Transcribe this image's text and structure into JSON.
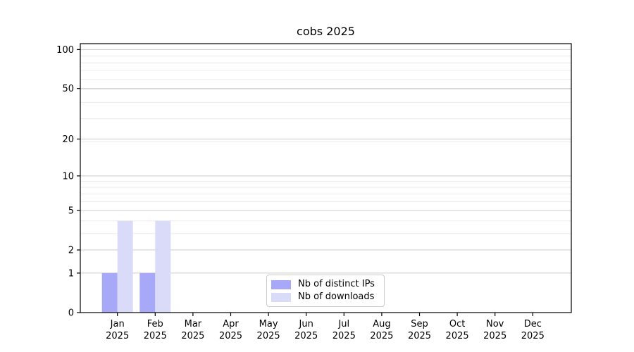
{
  "chart_data": {
    "type": "bar",
    "title": "cobs 2025",
    "categories": [
      "Jan",
      "Feb",
      "Mar",
      "Apr",
      "May",
      "Jun",
      "Jul",
      "Aug",
      "Sep",
      "Oct",
      "Nov",
      "Dec"
    ],
    "year_label": "2025",
    "series": [
      {
        "name": "Nb of distinct IPs",
        "color": "#a8a8f8",
        "values": [
          1,
          1,
          0,
          0,
          0,
          0,
          0,
          0,
          0,
          0,
          0,
          0
        ]
      },
      {
        "name": "Nb of downloads",
        "color": "#dadaf9",
        "values": [
          4,
          4,
          0,
          0,
          0,
          0,
          0,
          0,
          0,
          0,
          0,
          0
        ]
      }
    ],
    "xlabel": "",
    "ylabel": "",
    "yscale": "log10(1+y)",
    "ylim": [
      0,
      110
    ],
    "yticks": [
      0,
      1,
      2,
      5,
      10,
      20,
      50,
      100
    ],
    "yticks_minor": [
      3,
      4,
      6,
      7,
      8,
      9,
      19,
      29,
      39,
      49,
      59,
      69,
      79,
      89
    ],
    "grid": true,
    "legend_position": "lower center",
    "colors": {
      "grid_major": "#cccccc",
      "grid_minor": "#ececec",
      "axis": "#000000",
      "text": "#000000",
      "background": "#ffffff"
    }
  }
}
